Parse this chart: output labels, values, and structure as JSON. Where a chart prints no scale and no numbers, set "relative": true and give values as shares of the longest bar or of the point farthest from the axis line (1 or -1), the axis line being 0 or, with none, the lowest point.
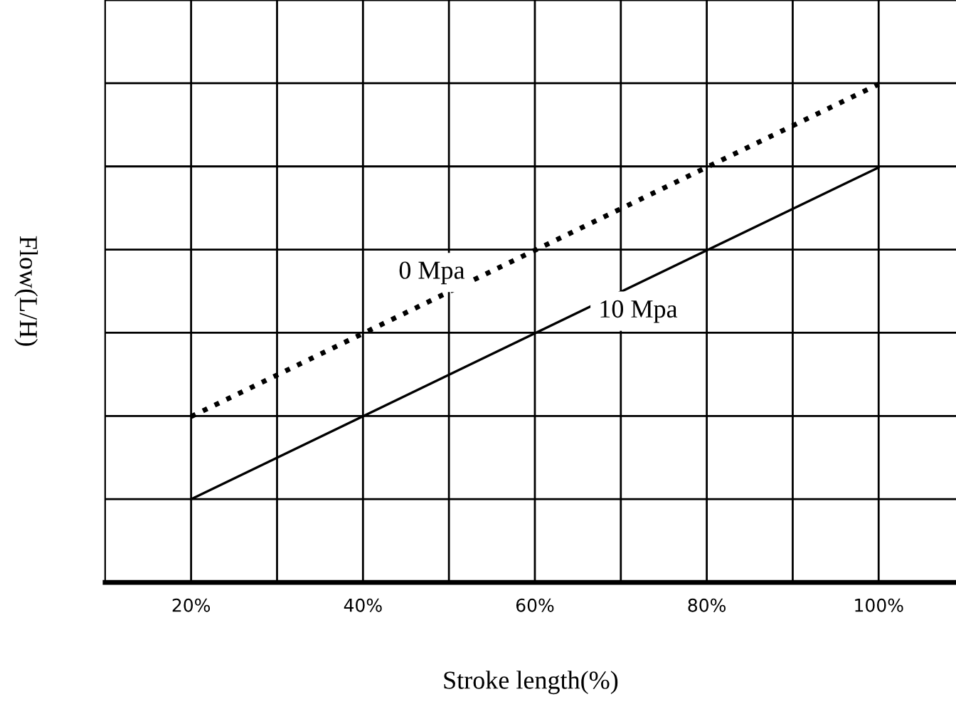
{
  "chart_data": {
    "type": "line",
    "xlabel": "Stroke length(%)",
    "ylabel": "Flow(L/H)",
    "relative": true,
    "x": [
      20,
      100
    ],
    "xlim": [
      10,
      109
    ],
    "xticks": [
      {
        "value": 20,
        "label": "20%"
      },
      {
        "value": 30,
        "label": null
      },
      {
        "value": 40,
        "label": "40%"
      },
      {
        "value": 50,
        "label": null
      },
      {
        "value": 60,
        "label": "60%"
      },
      {
        "value": 70,
        "label": null
      },
      {
        "value": 80,
        "label": "80%"
      },
      {
        "value": 90,
        "label": null
      },
      {
        "value": 100,
        "label": "100%"
      }
    ],
    "grid": true,
    "legend": false,
    "tick_labels": "x",
    "series": [
      {
        "name": "0 Mpa",
        "color": "#000000",
        "line_style": "dotted",
        "values": [
          0.333,
          1
        ]
      },
      {
        "name": "10 Mpa",
        "color": "#000000",
        "line_style": "solid",
        "values": [
          0.167,
          0.833
        ]
      }
    ]
  }
}
